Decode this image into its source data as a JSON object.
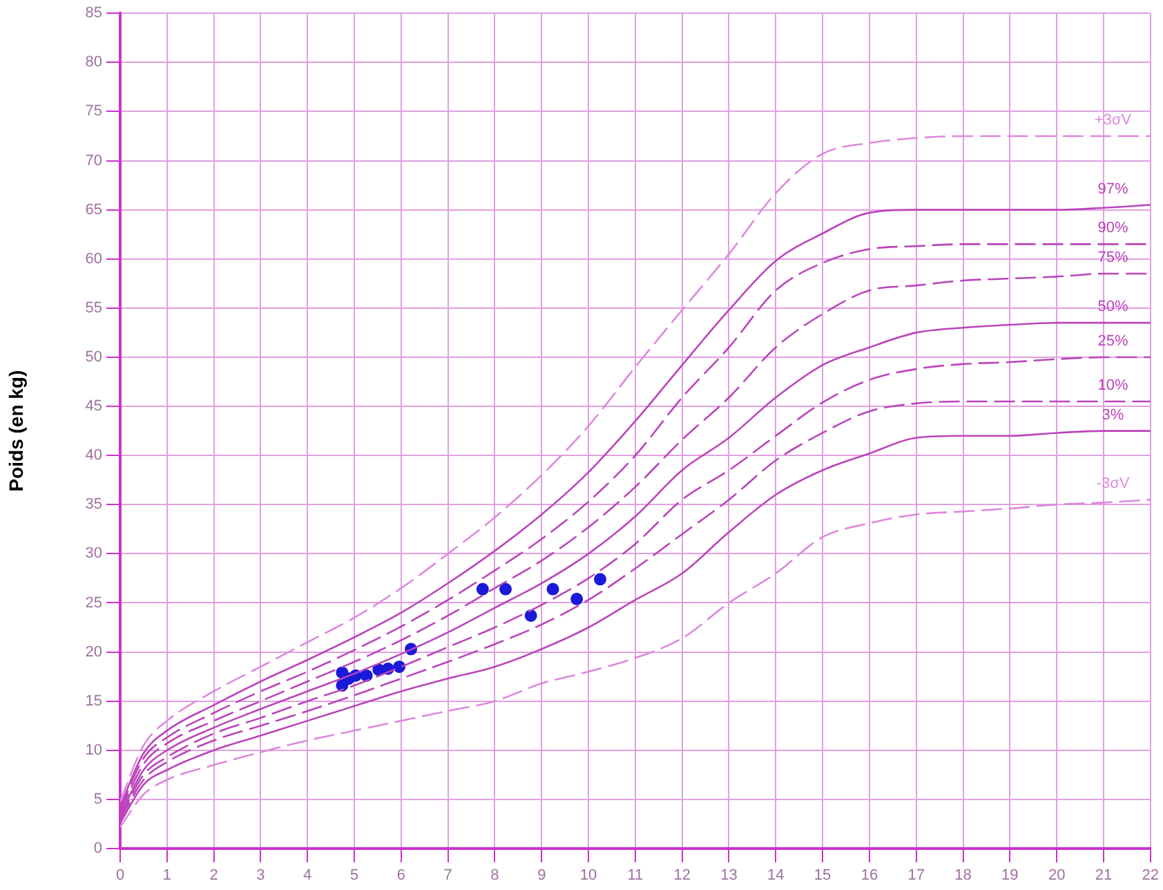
{
  "chart_data": {
    "type": "line",
    "ylabel": "Poids (en kg)",
    "x": [
      0,
      0.5,
      1,
      2,
      3,
      4,
      5,
      6,
      7,
      8,
      9,
      10,
      11,
      12,
      13,
      14,
      15,
      16,
      17,
      18,
      19,
      20,
      21,
      22
    ],
    "series": [
      {
        "name": "+3σV",
        "color": "#dd88dd",
        "line_style": "dashed",
        "values": [
          4.8,
          10.5,
          13,
          16,
          18.5,
          21,
          23.5,
          26.5,
          30,
          33.7,
          38,
          43,
          49,
          54.8,
          60.5,
          66.7,
          70.7,
          71.8,
          72.3,
          72.5,
          72.5,
          72.5,
          72.5,
          72.5
        ]
      },
      {
        "name": "97%",
        "color": "#bb44bb",
        "line_style": "solid",
        "values": [
          4.3,
          9.7,
          12,
          14.6,
          17,
          19.2,
          21.5,
          24,
          27,
          30.3,
          34,
          38.3,
          43.5,
          49.2,
          54.8,
          59.8,
          62.6,
          64.7,
          65,
          65,
          65,
          65,
          65.2,
          65.5
        ]
      },
      {
        "name": "90%",
        "color": "#bb44bb",
        "line_style": "dashed",
        "values": [
          4,
          9.2,
          11.3,
          13.8,
          16,
          18,
          20.2,
          22.6,
          25.3,
          28.3,
          31.5,
          35.3,
          40,
          45.9,
          51,
          56.8,
          59.6,
          61,
          61.3,
          61.5,
          61.5,
          61.5,
          61.5,
          61.5
        ]
      },
      {
        "name": "75%",
        "color": "#bb44bb",
        "line_style": "dashed",
        "values": [
          3.7,
          8.6,
          10.7,
          13,
          15,
          17,
          19,
          21.2,
          23.7,
          26.5,
          29.3,
          32.7,
          36.8,
          41.6,
          45.9,
          51,
          54.4,
          56.8,
          57.3,
          57.8,
          58,
          58.2,
          58.5,
          58.5
        ]
      },
      {
        "name": "50%",
        "color": "#bb44bb",
        "line_style": "solid",
        "values": [
          3.4,
          8,
          10,
          12.3,
          14.2,
          16,
          17.8,
          19.8,
          22,
          24.5,
          27,
          30,
          33.8,
          38.5,
          41.8,
          45.9,
          49.2,
          51,
          52.5,
          53,
          53.3,
          53.5,
          53.5,
          53.5
        ]
      },
      {
        "name": "25%",
        "color": "#bb44bb",
        "line_style": "dashed",
        "values": [
          3.1,
          7.5,
          9.3,
          11.7,
          13.3,
          15,
          16.6,
          18.5,
          20.5,
          22.5,
          24.8,
          27.5,
          31,
          35.5,
          38.5,
          42,
          45.4,
          47.7,
          48.8,
          49.3,
          49.5,
          49.8,
          50,
          50
        ]
      },
      {
        "name": "10%",
        "color": "#bb44bb",
        "line_style": "dashed",
        "values": [
          2.9,
          7,
          8.8,
          11,
          12.5,
          14,
          15.6,
          17.3,
          19,
          20.8,
          22.8,
          25.3,
          28.5,
          32,
          35.5,
          39.5,
          42.3,
          44.5,
          45.3,
          45.5,
          45.5,
          45.5,
          45.5,
          45.5
        ]
      },
      {
        "name": "3%",
        "color": "#bb44bb",
        "line_style": "solid",
        "values": [
          2.6,
          6.5,
          8,
          10,
          11.5,
          13,
          14.5,
          16,
          17.3,
          18.5,
          20.3,
          22.5,
          25.3,
          28,
          32.2,
          36,
          38.5,
          40.2,
          41.8,
          42,
          42,
          42.3,
          42.5,
          42.5
        ]
      },
      {
        "name": "-3σV",
        "color": "#dd88dd",
        "line_style": "dashed",
        "values": [
          2.2,
          5.5,
          7,
          8.5,
          9.8,
          11,
          12,
          13,
          14,
          15,
          16.8,
          18,
          19.4,
          21.4,
          25,
          28,
          31.7,
          33.1,
          34,
          34.3,
          34.6,
          35,
          35.2,
          35.5
        ]
      },
      {
        "type": "scatter",
        "color": "#1a1ad9",
        "marker": "circle",
        "x": [
          4.74,
          4.74,
          4.88,
          5.03,
          5.26,
          5.52,
          5.72,
          5.96,
          6.21,
          7.74,
          8.23,
          8.77,
          9.24,
          9.75,
          10.25
        ],
        "values": [
          17.9,
          16.6,
          17.3,
          17.6,
          17.6,
          18.2,
          18.3,
          18.5,
          20.3,
          26.4,
          26.4,
          23.7,
          26.4,
          25.4,
          27.4
        ]
      }
    ],
    "xlim": [
      0,
      22
    ],
    "xticks": [
      0,
      1,
      2,
      3,
      4,
      5,
      6,
      7,
      8,
      9,
      10,
      11,
      12,
      13,
      14,
      15,
      16,
      17,
      18,
      19,
      20,
      21,
      22
    ],
    "ylim": [
      0,
      85
    ],
    "yticks": [
      0,
      5,
      10,
      15,
      20,
      25,
      30,
      35,
      40,
      45,
      50,
      55,
      60,
      65,
      70,
      75,
      80,
      85
    ],
    "grid": true,
    "legend": false,
    "marker": "none"
  }
}
